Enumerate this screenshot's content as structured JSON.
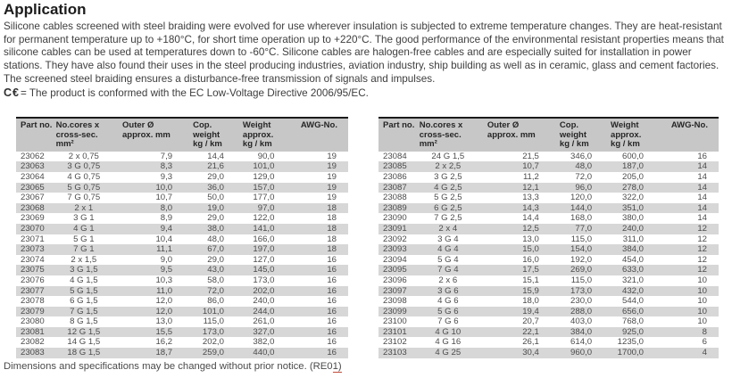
{
  "page": {
    "title": "Application",
    "paragraph": "Silicone cables screened with steel braiding were evolved for use wherever insulation is subjected to extreme temperature changes. They are heat-resistant for permanent temperature up to +180°C, for short time operation up to +220°C. The good performance of the environmental resistant properties means that silicone cables can be used at temperatures down to -60°C. Silicone cables are halogen-free cables and are especially suited for installation in power stations. They have also found their uses in the steel producing industries, aviation industry, ship building as well as in ceramic, glass and cement factories. The screened steel braiding ensures a disturbance-free transmission of signals and impulses.",
    "ce_symbol": "C€",
    "ce_note": "= The product is conformed with the EC Low-Voltage Directive 2006/95/EC.",
    "footer_text": "Dimensions and specifications may be changed without prior notice. (RE0",
    "footer_underlined": "1)"
  },
  "colors": {
    "header_bg": "#c7c7c7",
    "stripe_bg": "#d7d7d7",
    "footer_underline": "#c24a3a"
  },
  "table_headers": {
    "part_no": "Part no.",
    "cores": [
      "No.cores x",
      "cross-sec.",
      "mm²"
    ],
    "outer": [
      "Outer Ø",
      "approx. mm",
      ""
    ],
    "cop": [
      "Cop.",
      "weight",
      "kg / km"
    ],
    "weight": [
      "Weight",
      "approx.",
      "kg / km"
    ],
    "awg": "AWG-No."
  },
  "left_table": {
    "rows": [
      [
        "23062",
        "2 x 0,75",
        "7,9",
        "14,4",
        "90,0",
        "19"
      ],
      [
        "23063",
        "3 G 0,75",
        "8,3",
        "21,6",
        "101,0",
        "19"
      ],
      [
        "23064",
        "4 G 0,75",
        "9,3",
        "29,0",
        "129,0",
        "19"
      ],
      [
        "23065",
        "5 G 0,75",
        "10,0",
        "36,0",
        "157,0",
        "19"
      ],
      [
        "23067",
        "7 G 0,75",
        "10,7",
        "50,0",
        "177,0",
        "19"
      ],
      [
        "23068",
        "2 x 1",
        "8,0",
        "19,0",
        "97,0",
        "18"
      ],
      [
        "23069",
        "3 G 1",
        "8,9",
        "29,0",
        "122,0",
        "18"
      ],
      [
        "23070",
        "4 G 1",
        "9,4",
        "38,0",
        "141,0",
        "18"
      ],
      [
        "23071",
        "5 G 1",
        "10,4",
        "48,0",
        "166,0",
        "18"
      ],
      [
        "23073",
        "7 G 1",
        "11,1",
        "67,0",
        "197,0",
        "18"
      ],
      [
        "23074",
        "2 x 1,5",
        "9,0",
        "29,0",
        "127,0",
        "16"
      ],
      [
        "23075",
        "3 G 1,5",
        "9,5",
        "43,0",
        "145,0",
        "16"
      ],
      [
        "23076",
        "4 G 1,5",
        "10,3",
        "58,0",
        "173,0",
        "16"
      ],
      [
        "23077",
        "5 G 1,5",
        "11,0",
        "72,0",
        "202,0",
        "16"
      ],
      [
        "23078",
        "6 G 1,5",
        "12,0",
        "86,0",
        "240,0",
        "16"
      ],
      [
        "23079",
        "7 G 1,5",
        "12,0",
        "101,0",
        "244,0",
        "16"
      ],
      [
        "23080",
        "8 G 1,5",
        "13,0",
        "115,0",
        "261,0",
        "16"
      ],
      [
        "23081",
        "12 G 1,5",
        "15,5",
        "173,0",
        "327,0",
        "16"
      ],
      [
        "23082",
        "14 G 1,5",
        "16,2",
        "202,0",
        "382,0",
        "16"
      ],
      [
        "23083",
        "18 G 1,5",
        "18,7",
        "259,0",
        "440,0",
        "16"
      ]
    ]
  },
  "right_table": {
    "rows": [
      [
        "23084",
        "24 G 1,5",
        "21,5",
        "346,0",
        "600,0",
        "16"
      ],
      [
        "23085",
        "2 x 2,5",
        "10,7",
        "48,0",
        "187,0",
        "14"
      ],
      [
        "23086",
        "3 G 2,5",
        "11,2",
        "72,0",
        "205,0",
        "14"
      ],
      [
        "23087",
        "4 G 2,5",
        "12,1",
        "96,0",
        "278,0",
        "14"
      ],
      [
        "23088",
        "5 G 2,5",
        "13,3",
        "120,0",
        "322,0",
        "14"
      ],
      [
        "23089",
        "6 G 2,5",
        "14,3",
        "144,0",
        "351,0",
        "14"
      ],
      [
        "23090",
        "7 G 2,5",
        "14,4",
        "168,0",
        "380,0",
        "14"
      ],
      [
        "23091",
        "2 x 4",
        "12,5",
        "77,0",
        "240,0",
        "12"
      ],
      [
        "23092",
        "3 G 4",
        "13,0",
        "115,0",
        "311,0",
        "12"
      ],
      [
        "23093",
        "4 G 4",
        "15,0",
        "154,0",
        "384,0",
        "12"
      ],
      [
        "23094",
        "5 G 4",
        "16,0",
        "192,0",
        "454,0",
        "12"
      ],
      [
        "23095",
        "7 G 4",
        "17,5",
        "269,0",
        "633,0",
        "12"
      ],
      [
        "23096",
        "2 x 6",
        "15,1",
        "115,0",
        "321,0",
        "10"
      ],
      [
        "23097",
        "3 G 6",
        "15,9",
        "173,0",
        "432,0",
        "10"
      ],
      [
        "23098",
        "4 G 6",
        "18,0",
        "230,0",
        "544,0",
        "10"
      ],
      [
        "23099",
        "5 G 6",
        "19,4",
        "288,0",
        "656,0",
        "10"
      ],
      [
        "23100",
        "7 G 6",
        "20,7",
        "403,0",
        "768,0",
        "10"
      ],
      [
        "23101",
        "4 G 10",
        "22,1",
        "384,0",
        "925,0",
        "8"
      ],
      [
        "23102",
        "4 G 16",
        "26,1",
        "614,0",
        "1235,0",
        "6"
      ],
      [
        "23103",
        "4 G 25",
        "30,4",
        "960,0",
        "1700,0",
        "4"
      ]
    ]
  }
}
